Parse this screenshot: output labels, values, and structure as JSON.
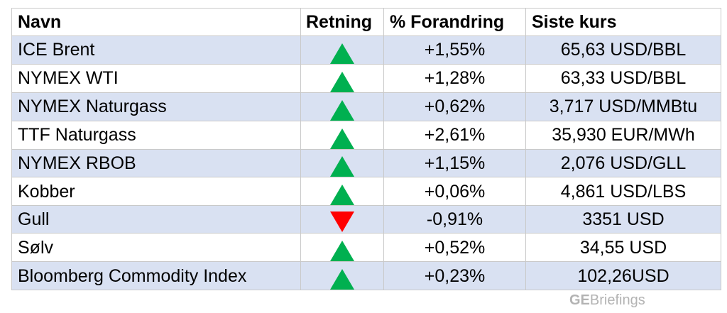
{
  "headers": {
    "name": "Navn",
    "direction": "Retning",
    "change": "% Forandring",
    "last": "Siste kurs"
  },
  "rows": [
    {
      "name": "ICE Brent",
      "direction": "up",
      "change": "+1,55%",
      "last": "65,63 USD/BBL"
    },
    {
      "name": "NYMEX WTI",
      "direction": "up",
      "change": "+1,28%",
      "last": "63,33 USD/BBL"
    },
    {
      "name": "NYMEX Naturgass",
      "direction": "up",
      "change": "+0,62%",
      "last": "3,717 USD/MMBtu"
    },
    {
      "name": "TTF Naturgass",
      "direction": "up",
      "change": "+2,61%",
      "last": "35,930 EUR/MWh"
    },
    {
      "name": "NYMEX RBOB",
      "direction": "up",
      "change": "+1,15%",
      "last": "2,076 USD/GLL"
    },
    {
      "name": "Kobber",
      "direction": "up",
      "change": "+0,06%",
      "last": "4,861 USD/LBS"
    },
    {
      "name": "Gull",
      "direction": "down",
      "change": "-0,91%",
      "last": "3351 USD"
    },
    {
      "name": "Sølv",
      "direction": "up",
      "change": "+0,52%",
      "last": "34,55 USD"
    },
    {
      "name": "Bloomberg Commodity Index",
      "direction": "up",
      "change": "+0,23%",
      "last": "102,26USD"
    }
  ],
  "colors": {
    "up": "#00b050",
    "down": "#ff0000",
    "shaded_row": "#d9e1f2",
    "brand": "#b3b3b3"
  },
  "brand": {
    "bold": "GE",
    "rest": "Briefings"
  }
}
